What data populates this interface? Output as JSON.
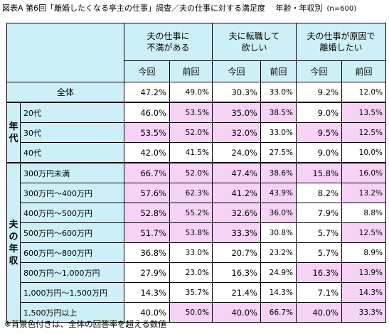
{
  "title": "図表A 第6回「離婚したくなる亭主の仕事」調査／夫の仕事に対する満足度　 年齢・年収別",
  "n_label": "(n=600)",
  "headers": {
    "groups": [
      "夫の仕事に\n不満がある",
      "夫に転職して\n欲しい",
      "夫の仕事が原因で\n離婚したい"
    ],
    "sub": [
      "今回",
      "前回"
    ]
  },
  "total": {
    "label": "全体",
    "values": [
      "47.2%",
      "49.0%",
      "30.3%",
      "33.0%",
      "9.2%",
      "12.0%"
    ]
  },
  "age_group_label": "年\n代",
  "income_group_label": "夫\nの\n年\n収",
  "age_rows": [
    {
      "label": "20代",
      "values": [
        "46.0%",
        "53.5%",
        "35.0%",
        "38.5%",
        "9.0%",
        "13.5%"
      ],
      "hi": [
        false,
        true,
        true,
        true,
        false,
        true
      ]
    },
    {
      "label": "30代",
      "values": [
        "53.5%",
        "52.0%",
        "32.0%",
        "33.0%",
        "9.5%",
        "12.5%"
      ],
      "hi": [
        true,
        true,
        true,
        false,
        true,
        true
      ]
    },
    {
      "label": "40代",
      "values": [
        "42.0%",
        "41.5%",
        "24.0%",
        "27.5%",
        "9.0%",
        "10.0%"
      ],
      "hi": [
        false,
        false,
        false,
        false,
        false,
        false
      ]
    }
  ],
  "income_rows": [
    {
      "label": "300万円未満",
      "values": [
        "66.7%",
        "52.0%",
        "47.4%",
        "38.6%",
        "15.8%",
        "16.0%"
      ],
      "hi": [
        true,
        true,
        true,
        true,
        true,
        true
      ]
    },
    {
      "label": "300万円～400万円",
      "values": [
        "57.6%",
        "62.3%",
        "41.2%",
        "43.9%",
        "8.2%",
        "13.2%"
      ],
      "hi": [
        true,
        true,
        true,
        true,
        false,
        true
      ]
    },
    {
      "label": "400万円～500万円",
      "values": [
        "52.8%",
        "55.2%",
        "32.6%",
        "36.0%",
        "7.9%",
        "8.8%"
      ],
      "hi": [
        true,
        true,
        true,
        true,
        false,
        false
      ]
    },
    {
      "label": "500万円～600万円",
      "values": [
        "51.7%",
        "53.8%",
        "33.3%",
        "30.8%",
        "5.7%",
        "12.5%"
      ],
      "hi": [
        true,
        true,
        true,
        false,
        false,
        true
      ]
    },
    {
      "label": "600万円～800万円",
      "values": [
        "36.8%",
        "33.0%",
        "20.7%",
        "23.2%",
        "5.7%",
        "8.9%"
      ],
      "hi": [
        false,
        false,
        false,
        false,
        false,
        false
      ]
    },
    {
      "label": "800万円～1,000万円",
      "values": [
        "27.9%",
        "23.0%",
        "16.3%",
        "24.9%",
        "16.3%",
        "13.9%"
      ],
      "hi": [
        false,
        false,
        false,
        false,
        true,
        true
      ]
    },
    {
      "label": "1,000万円～1,500万円",
      "values": [
        "14.3%",
        "35.7%",
        "21.4%",
        "14.3%",
        "7.1%",
        "14.3%"
      ],
      "hi": [
        false,
        false,
        false,
        false,
        false,
        true
      ]
    },
    {
      "label": "1,500万円以上",
      "values": [
        "40.0%",
        "50.0%",
        "40.0%",
        "66.7%",
        "40.0%",
        "33.3%"
      ],
      "hi": [
        false,
        true,
        true,
        true,
        true,
        true
      ]
    }
  ],
  "note": "※背景色付きは、全体の回答率を超える数値"
}
